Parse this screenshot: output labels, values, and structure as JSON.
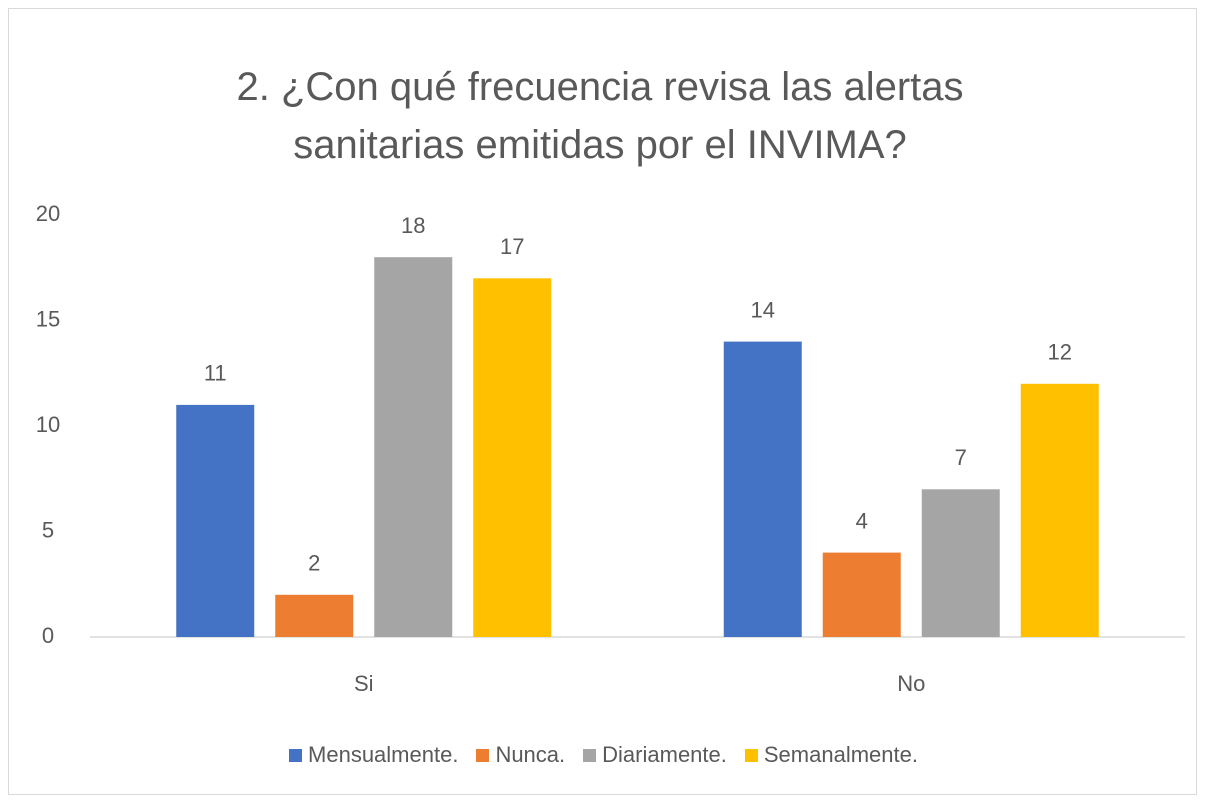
{
  "chart_data": {
    "type": "bar",
    "title": "2.  ¿Con qué frecuencia revisa las alertas sanitarias emitidas por el INVIMA?",
    "categories": [
      "Si",
      "No"
    ],
    "series": [
      {
        "name": "Mensualmente.",
        "color": "#4472c4",
        "values": [
          11,
          14
        ]
      },
      {
        "name": "Nunca.",
        "color": "#ed7d31",
        "values": [
          2,
          4
        ]
      },
      {
        "name": "Diariamente.",
        "color": "#a5a5a5",
        "values": [
          18,
          7
        ]
      },
      {
        "name": "Semanalmente.",
        "color": "#ffc000",
        "values": [
          17,
          12
        ]
      }
    ],
    "ylim": [
      0,
      20
    ],
    "yticks": [
      0,
      5,
      10,
      15,
      20
    ],
    "grid": false,
    "legend": "bottom"
  }
}
